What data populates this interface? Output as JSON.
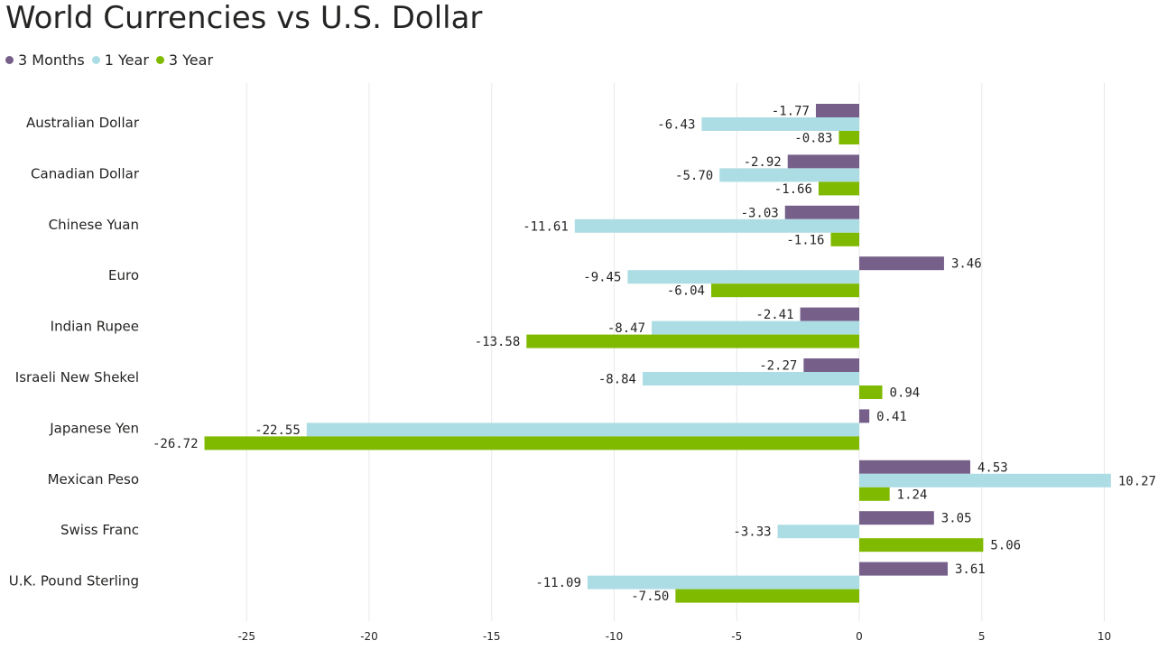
{
  "title": "World Currencies vs U.S. Dollar",
  "colors": {
    "3 Months": "#76608a",
    "1 Year": "#addde4",
    "3 Year": "#7fba00",
    "grid": "#e8e8e8",
    "text": "#252423"
  },
  "chart_data": {
    "type": "bar",
    "orientation": "horizontal",
    "title": "World Currencies vs U.S. Dollar",
    "xlabel": "",
    "ylabel": "",
    "xlim": [
      -28.5,
      10.4
    ],
    "x_ticks": [
      -25,
      -20,
      -15,
      -10,
      -5,
      0,
      5,
      10
    ],
    "grid": true,
    "legend_position": "top-left",
    "categories": [
      "Australian Dollar",
      "Canadian Dollar",
      "Chinese Yuan",
      "Euro",
      "Indian Rupee",
      "Israeli New Shekel",
      "Japanese Yen",
      "Mexican Peso",
      "Swiss Franc",
      "U.K. Pound Sterling"
    ],
    "series": [
      {
        "name": "3 Months",
        "values": [
          -1.77,
          -2.92,
          -3.03,
          3.46,
          -2.41,
          -2.27,
          0.41,
          4.53,
          3.05,
          3.61
        ]
      },
      {
        "name": "1 Year",
        "values": [
          -6.43,
          -5.7,
          -11.61,
          -9.45,
          -8.47,
          -8.84,
          -22.55,
          10.27,
          -3.33,
          -11.09
        ]
      },
      {
        "name": "3 Year",
        "values": [
          -0.83,
          -1.66,
          -1.16,
          -6.04,
          -13.58,
          0.94,
          -26.72,
          1.24,
          5.06,
          -7.5
        ]
      }
    ]
  }
}
